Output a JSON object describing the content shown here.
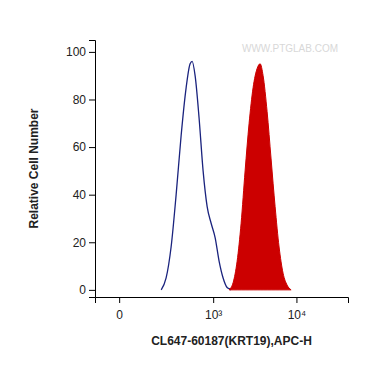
{
  "chart_data": {
    "type": "line",
    "annotation": "WWW.PTGLAB.COM",
    "x_label": "CL647-60187(KRT19),APC-H",
    "y_label": "Relative Cell Number",
    "log": "x",
    "x": [
      183,
      221,
      265,
      316,
      374,
      440,
      499,
      532,
      583,
      659,
      743,
      838,
      942,
      1058,
      1188,
      1331,
      1492,
      1579,
      1670,
      1766,
      1976,
      2209,
      2468,
      2757,
      3078,
      3436,
      3729,
      4048,
      4515,
      5034,
      5614,
      6256,
      6970,
      7770,
      8660
    ],
    "series": [
      {
        "type": "line",
        "color": "#1a237e",
        "values": [
          0,
          5,
          18,
          40,
          65,
          85,
          95,
          96,
          90,
          72,
          50,
          35,
          28,
          22,
          12,
          5,
          1,
          0.5,
          0,
          null,
          null,
          null,
          null,
          null,
          null,
          null,
          null,
          null,
          null,
          null,
          null,
          null,
          null,
          null,
          null
        ]
      },
      {
        "type": "area",
        "color": "#cc0000",
        "values": [
          null,
          null,
          null,
          null,
          null,
          null,
          null,
          null,
          null,
          null,
          null,
          null,
          null,
          null,
          null,
          null,
          null,
          0,
          1,
          3,
          12,
          28,
          50,
          70,
          85,
          93,
          95,
          90,
          75,
          55,
          35,
          18,
          7,
          2,
          0
        ]
      }
    ],
    "xlim": [
      -80,
      40000
    ],
    "xticks": [
      {
        "value": 0,
        "label": "0"
      },
      {
        "value": 1000,
        "label": "10³"
      },
      {
        "value": 10000,
        "label": "10⁴"
      }
    ],
    "ylim": [
      -3,
      105
    ],
    "yticks": [
      0,
      20,
      40,
      60,
      80,
      100
    ]
  }
}
